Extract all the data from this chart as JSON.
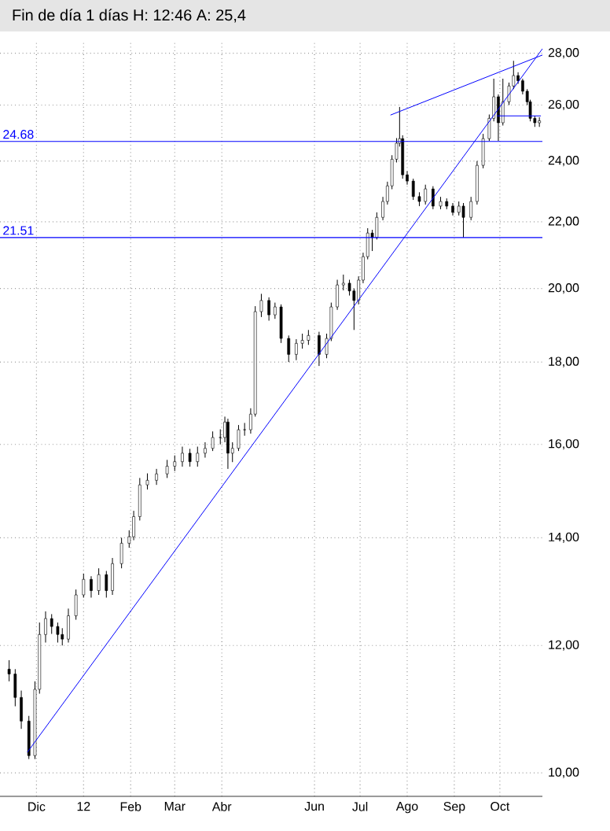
{
  "chart_data": {
    "type": "candlestick",
    "title": "Fin de día 1 días H: 12:46 A: 25,4",
    "color": "#000000",
    "x": [
      "2011-11-13",
      "2011-11-17",
      "2011-11-21",
      "2011-11-26",
      "2011-11-30",
      "2011-12-03",
      "2011-12-07",
      "2011-12-11",
      "2011-12-15",
      "2011-12-18",
      "2011-12-22",
      "2011-12-27",
      "2012-01-01",
      "2012-01-06",
      "2012-01-11",
      "2012-01-16",
      "2012-01-20",
      "2012-01-26",
      "2012-01-31",
      "2012-02-03",
      "2012-02-07",
      "2012-02-12",
      "2012-02-18",
      "2012-02-25",
      "2012-03-01",
      "2012-03-06",
      "2012-03-11",
      "2012-03-16",
      "2012-03-21",
      "2012-03-26",
      "2012-03-31",
      "2012-04-03",
      "2012-04-05",
      "2012-04-08",
      "2012-04-12",
      "2012-04-16",
      "2012-04-20",
      "2012-04-23",
      "2012-04-27",
      "2012-05-02",
      "2012-05-06",
      "2012-05-10",
      "2012-05-15",
      "2012-05-20",
      "2012-05-24",
      "2012-05-28",
      "2012-06-04",
      "2012-06-09",
      "2012-06-12",
      "2012-06-16",
      "2012-06-20",
      "2012-06-24",
      "2012-06-27",
      "2012-06-30",
      "2012-07-03",
      "2012-07-06",
      "2012-07-09",
      "2012-07-12",
      "2012-07-16",
      "2012-07-19",
      "2012-07-22",
      "2012-07-25",
      "2012-07-27",
      "2012-07-29",
      "2012-08-01",
      "2012-08-05",
      "2012-08-09",
      "2012-08-13",
      "2012-08-18",
      "2012-08-23",
      "2012-08-27",
      "2012-08-31",
      "2012-09-04",
      "2012-09-07",
      "2012-09-12",
      "2012-09-16",
      "2012-09-20",
      "2012-09-24",
      "2012-09-27",
      "2012-09-30",
      "2012-10-03",
      "2012-10-07",
      "2012-10-10",
      "2012-10-13",
      "2012-10-16",
      "2012-10-19",
      "2012-10-21",
      "2012-10-24",
      "2012-10-27"
    ],
    "ohlc": [
      [
        11.6,
        11.75,
        11.4,
        11.52
      ],
      [
        11.52,
        11.6,
        11.0,
        11.14
      ],
      [
        11.14,
        11.25,
        10.65,
        10.77
      ],
      [
        10.77,
        10.85,
        10.2,
        10.25
      ],
      [
        10.25,
        11.4,
        10.2,
        11.27
      ],
      [
        11.27,
        12.4,
        11.2,
        12.19
      ],
      [
        12.19,
        12.6,
        12.05,
        12.47
      ],
      [
        12.47,
        12.55,
        12.2,
        12.33
      ],
      [
        12.33,
        12.4,
        12.05,
        12.19
      ],
      [
        12.19,
        12.3,
        12.0,
        12.11
      ],
      [
        12.11,
        12.65,
        12.05,
        12.52
      ],
      [
        12.52,
        13.0,
        12.45,
        12.9
      ],
      [
        12.9,
        13.3,
        12.85,
        13.19
      ],
      [
        13.19,
        13.25,
        12.85,
        12.98
      ],
      [
        12.98,
        13.4,
        12.9,
        13.28
      ],
      [
        13.28,
        13.35,
        12.85,
        12.98
      ],
      [
        12.98,
        13.6,
        12.9,
        13.49
      ],
      [
        13.49,
        14.0,
        13.4,
        13.89
      ],
      [
        13.89,
        14.15,
        13.8,
        14.02
      ],
      [
        14.02,
        14.55,
        13.95,
        14.43
      ],
      [
        14.43,
        15.25,
        14.35,
        15.1
      ],
      [
        15.1,
        15.35,
        15.0,
        15.2
      ],
      [
        15.2,
        15.45,
        15.1,
        15.34
      ],
      [
        15.34,
        15.65,
        15.25,
        15.51
      ],
      [
        15.51,
        15.75,
        15.4,
        15.61
      ],
      [
        15.61,
        15.95,
        15.5,
        15.8
      ],
      [
        15.8,
        15.9,
        15.5,
        15.61
      ],
      [
        15.61,
        15.95,
        15.5,
        15.8
      ],
      [
        15.8,
        16.05,
        15.7,
        15.91
      ],
      [
        15.91,
        16.3,
        15.85,
        16.16
      ],
      [
        16.16,
        16.35,
        16.0,
        16.16
      ],
      [
        16.16,
        16.65,
        16.05,
        16.52
      ],
      [
        16.52,
        16.6,
        15.45,
        15.8
      ],
      [
        15.8,
        16.05,
        15.6,
        15.91
      ],
      [
        15.91,
        16.45,
        15.85,
        16.34
      ],
      [
        16.34,
        16.5,
        16.2,
        16.34
      ],
      [
        16.34,
        16.85,
        16.25,
        16.71
      ],
      [
        16.71,
        19.5,
        16.65,
        19.35
      ],
      [
        19.35,
        19.85,
        19.2,
        19.66
      ],
      [
        19.66,
        19.75,
        19.1,
        19.26
      ],
      [
        19.26,
        19.6,
        19.15,
        19.48
      ],
      [
        19.48,
        19.55,
        18.5,
        18.62
      ],
      [
        18.62,
        18.7,
        18.0,
        18.2
      ],
      [
        18.2,
        18.6,
        18.05,
        18.49
      ],
      [
        18.49,
        18.75,
        18.35,
        18.57
      ],
      [
        18.57,
        18.85,
        18.45,
        18.7
      ],
      [
        18.7,
        18.8,
        17.9,
        18.2
      ],
      [
        18.2,
        18.75,
        18.1,
        18.62
      ],
      [
        18.62,
        19.6,
        18.55,
        19.48
      ],
      [
        19.48,
        20.25,
        19.4,
        20.1
      ],
      [
        20.1,
        20.4,
        19.95,
        20.15
      ],
      [
        20.15,
        20.25,
        19.8,
        19.93
      ],
      [
        19.93,
        20.0,
        18.85,
        19.66
      ],
      [
        19.66,
        20.35,
        19.55,
        20.24
      ],
      [
        20.24,
        21.05,
        20.15,
        20.93
      ],
      [
        20.93,
        21.8,
        20.85,
        21.65
      ],
      [
        21.65,
        21.75,
        21.1,
        21.51
      ],
      [
        21.51,
        22.3,
        21.45,
        22.14
      ],
      [
        22.14,
        22.8,
        22.05,
        22.65
      ],
      [
        22.65,
        23.3,
        22.55,
        23.16
      ],
      [
        23.16,
        24.2,
        23.05,
        24.06
      ],
      [
        24.06,
        24.8,
        23.95,
        24.62
      ],
      [
        24.62,
        25.93,
        24.5,
        24.78
      ],
      [
        24.78,
        24.9,
        23.4,
        23.53
      ],
      [
        23.53,
        23.65,
        23.2,
        23.32
      ],
      [
        23.32,
        23.4,
        22.7,
        22.81
      ],
      [
        22.81,
        22.95,
        22.5,
        22.65
      ],
      [
        22.65,
        23.2,
        22.55,
        23.06
      ],
      [
        23.06,
        23.15,
        22.4,
        22.5
      ],
      [
        22.5,
        22.8,
        22.4,
        22.65
      ],
      [
        22.65,
        22.75,
        22.4,
        22.5
      ],
      [
        22.5,
        22.6,
        22.2,
        22.3
      ],
      [
        22.3,
        22.65,
        22.2,
        22.5
      ],
      [
        22.5,
        22.6,
        21.51,
        22.14
      ],
      [
        22.14,
        22.8,
        22.05,
        22.65
      ],
      [
        22.65,
        24.0,
        22.55,
        23.85
      ],
      [
        23.85,
        24.95,
        23.75,
        24.78
      ],
      [
        24.78,
        25.65,
        24.7,
        25.51
      ],
      [
        25.51,
        27.0,
        25.4,
        26.31
      ],
      [
        26.31,
        26.4,
        24.7,
        25.35
      ],
      [
        25.35,
        27.0,
        25.25,
        26.12
      ],
      [
        26.12,
        26.85,
        26.0,
        26.72
      ],
      [
        26.72,
        27.7,
        26.6,
        27.12
      ],
      [
        27.12,
        27.25,
        26.8,
        26.92
      ],
      [
        26.92,
        27.0,
        26.4,
        26.52
      ],
      [
        26.52,
        26.6,
        26.0,
        26.12
      ],
      [
        26.12,
        26.2,
        25.4,
        25.51
      ],
      [
        25.51,
        25.6,
        25.2,
        25.35
      ],
      [
        25.35,
        25.55,
        25.2,
        25.42
      ]
    ],
    "series": [
      {
        "type": "line",
        "color": "#0000ff",
        "x": [
          "2011-11-25",
          "2012-10-29"
        ],
        "values": [
          10.3,
          28.18
        ]
      },
      {
        "type": "line",
        "color": "#0000ff",
        "x": [
          "2012-07-21",
          "2012-10-29"
        ],
        "values": [
          25.63,
          27.93
        ]
      },
      {
        "type": "line",
        "color": "#0000ff",
        "x": [
          "2012-09-29",
          "2012-10-28"
        ],
        "values": [
          25.6,
          25.6
        ]
      }
    ],
    "ref_lines": [
      {
        "axis": "y",
        "value": 24.68,
        "label": "24.68",
        "color": "#0000ff"
      },
      {
        "axis": "y",
        "value": 21.51,
        "label": "21.51",
        "color": "#0000ff"
      }
    ],
    "xlim": [
      "2011-11-07",
      "2012-10-29"
    ],
    "xticks": [
      {
        "value": "2011-12-01",
        "label": "Dic"
      },
      {
        "value": "2012-01-01",
        "label": "12"
      },
      {
        "value": "2012-02-01",
        "label": "Feb"
      },
      {
        "value": "2012-03-01",
        "label": "Mar"
      },
      {
        "value": "2012-04-01",
        "label": "Abr"
      },
      {
        "value": "2012-06-01",
        "label": "Jun"
      },
      {
        "value": "2012-07-01",
        "label": "Jul"
      },
      {
        "value": "2012-08-01",
        "label": "Ago"
      },
      {
        "value": "2012-09-01",
        "label": "Sep"
      },
      {
        "value": "2012-10-01",
        "label": "Oct"
      }
    ],
    "ylim": [
      9.67,
      28.5
    ],
    "yticks": [
      {
        "value": 10,
        "label": "10,00"
      },
      {
        "value": 12,
        "label": "12,00"
      },
      {
        "value": 14,
        "label": "14,00"
      },
      {
        "value": 16,
        "label": "16,00"
      },
      {
        "value": 18,
        "label": "18,00"
      },
      {
        "value": 20,
        "label": "20,00"
      },
      {
        "value": 22,
        "label": "22,00"
      },
      {
        "value": 24,
        "label": "24,00"
      },
      {
        "value": 26,
        "label": "26,00"
      },
      {
        "value": 28,
        "label": "28,00"
      }
    ],
    "log": "y",
    "grid": true
  }
}
